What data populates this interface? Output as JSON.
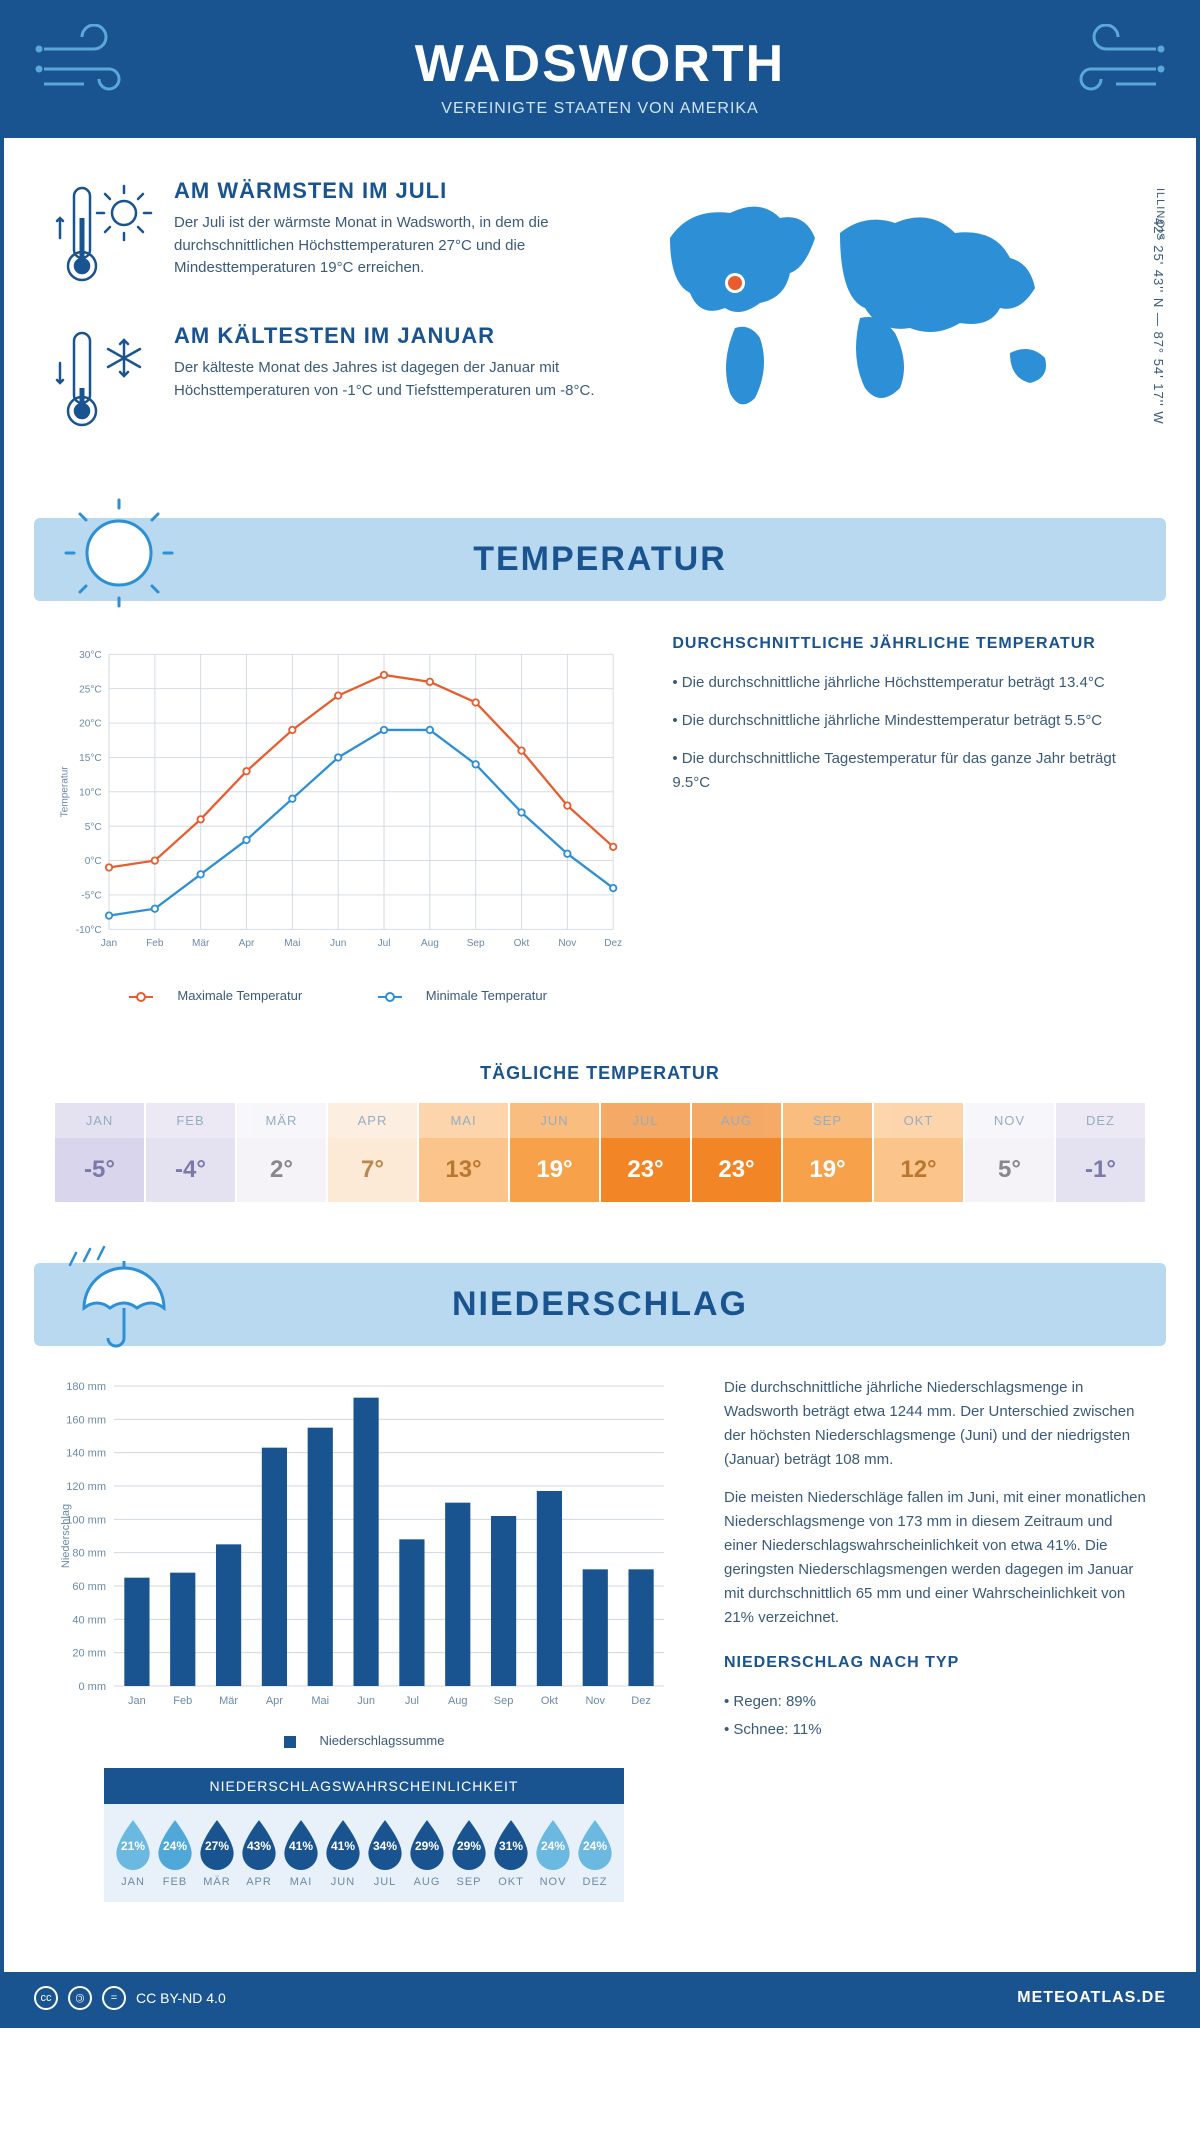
{
  "header": {
    "title": "WADSWORTH",
    "subtitle": "VEREINIGTE STAATEN VON AMERIKA"
  },
  "location": {
    "coords": "42° 25' 43'' N — 87° 54' 17'' W",
    "state": "ILLINOIS"
  },
  "summary": {
    "warm": {
      "title": "AM WÄRMSTEN IM JULI",
      "text": "Der Juli ist der wärmste Monat in Wadsworth, in dem die durchschnittlichen Höchsttemperaturen 27°C und die Mindesttemperaturen 19°C erreichen."
    },
    "cold": {
      "title": "AM KÄLTESTEN IM JANUAR",
      "text": "Der kälteste Monat des Jahres ist dagegen der Januar mit Höchsttemperaturen von -1°C und Tiefsttemperaturen um -8°C."
    }
  },
  "temperature": {
    "banner": "TEMPERATUR",
    "chart": {
      "months": [
        "Jan",
        "Feb",
        "Mär",
        "Apr",
        "Mai",
        "Jun",
        "Jul",
        "Aug",
        "Sep",
        "Okt",
        "Nov",
        "Dez"
      ],
      "max_values": [
        -1,
        0,
        6,
        13,
        19,
        24,
        27,
        26,
        23,
        16,
        8,
        2
      ],
      "min_values": [
        -8,
        -7,
        -2,
        3,
        9,
        15,
        19,
        19,
        14,
        7,
        1,
        -4
      ],
      "max_color": "#e85d2e",
      "min_color": "#2d8fd6",
      "grid_color": "#d0d8e0",
      "ylim": [
        -10,
        30
      ],
      "ytick_step": 5,
      "ylabel": "Temperatur",
      "legend_max": "Maximale Temperatur",
      "legend_min": "Minimale Temperatur"
    },
    "facts": {
      "title": "DURCHSCHNITTLICHE JÄHRLICHE TEMPERATUR",
      "p1": "• Die durchschnittliche jährliche Höchsttemperatur beträgt 13.4°C",
      "p2": "• Die durchschnittliche jährliche Mindesttemperatur beträgt 5.5°C",
      "p3": "• Die durchschnittliche Tagestemperatur für das ganze Jahr beträgt 9.5°C"
    },
    "daily": {
      "title": "TÄGLICHE TEMPERATUR",
      "months": [
        "JAN",
        "FEB",
        "MÄR",
        "APR",
        "MAI",
        "JUN",
        "JUL",
        "AUG",
        "SEP",
        "OKT",
        "NOV",
        "DEZ"
      ],
      "values": [
        "-5°",
        "-4°",
        "2°",
        "7°",
        "13°",
        "19°",
        "23°",
        "23°",
        "19°",
        "12°",
        "5°",
        "-1°"
      ],
      "bg_colors": [
        "#d9d5ec",
        "#e4e1f0",
        "#f5f3f8",
        "#fce9d6",
        "#fbc48a",
        "#f7a24a",
        "#f28627",
        "#f28627",
        "#f7a24a",
        "#fbc48a",
        "#f5f3f8",
        "#e4e1f0"
      ],
      "text_colors": [
        "#7a7aa8",
        "#7a7aa8",
        "#888",
        "#b88850",
        "#b87830",
        "#fff",
        "#fff",
        "#fff",
        "#fff",
        "#b87830",
        "#888",
        "#7a7aa8"
      ]
    }
  },
  "precipitation": {
    "banner": "NIEDERSCHLAG",
    "chart": {
      "months": [
        "Jan",
        "Feb",
        "Mär",
        "Apr",
        "Mai",
        "Jun",
        "Jul",
        "Aug",
        "Sep",
        "Okt",
        "Nov",
        "Dez"
      ],
      "values": [
        65,
        68,
        85,
        143,
        155,
        173,
        88,
        110,
        102,
        117,
        70,
        70
      ],
      "bar_color": "#1a5490",
      "grid_color": "#d0d8e0",
      "ylim": [
        0,
        180
      ],
      "ytick_step": 20,
      "ylabel": "Niederschlag",
      "legend": "Niederschlagssumme"
    },
    "text": {
      "p1": "Die durchschnittliche jährliche Niederschlagsmenge in Wadsworth beträgt etwa 1244 mm. Der Unterschied zwischen der höchsten Niederschlagsmenge (Juni) und der niedrigsten (Januar) beträgt 108 mm.",
      "p2": "Die meisten Niederschläge fallen im Juni, mit einer monatlichen Niederschlagsmenge von 173 mm in diesem Zeitraum und einer Niederschlagswahrscheinlichkeit von etwa 41%. Die geringsten Niederschlagsmengen werden dagegen im Januar mit durchschnittlich 65 mm und einer Wahrscheinlichkeit von 21% verzeichnet.",
      "type_title": "NIEDERSCHLAG NACH TYP",
      "type1": "• Regen: 89%",
      "type2": "• Schnee: 11%"
    },
    "probability": {
      "title": "NIEDERSCHLAGSWAHRSCHEINLICHKEIT",
      "months": [
        "JAN",
        "FEB",
        "MÄR",
        "APR",
        "MAI",
        "JUN",
        "JUL",
        "AUG",
        "SEP",
        "OKT",
        "NOV",
        "DEZ"
      ],
      "values": [
        "21%",
        "24%",
        "27%",
        "43%",
        "41%",
        "41%",
        "34%",
        "29%",
        "29%",
        "31%",
        "24%",
        "24%"
      ],
      "colors": [
        "#6bb8e0",
        "#4fa8d8",
        "#1a5490",
        "#1a5490",
        "#1a5490",
        "#1a5490",
        "#1a5490",
        "#1a5490",
        "#1a5490",
        "#1a5490",
        "#6bb8e0",
        "#6bb8e0"
      ]
    }
  },
  "footer": {
    "license": "CC BY-ND 4.0",
    "site": "METEOATLAS.DE"
  }
}
